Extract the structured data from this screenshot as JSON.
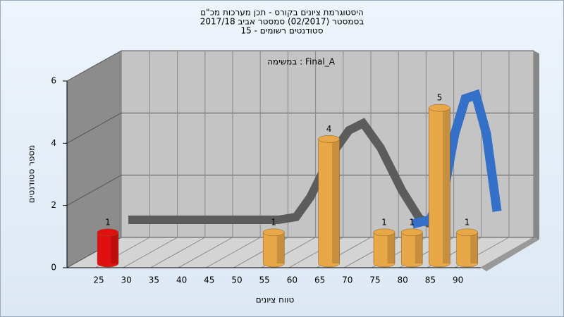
{
  "chart_data": {
    "type": "bar3d",
    "title_lines": [
      "היסטוגרמת ציונים בקורס - תכן מערכות מכ\"ם",
      "בסמסטר  (02/2017)  סמסטר אביב 2017/18",
      "סטודנטים רשומים - 15"
    ],
    "annotation": "במשימה : Final_A",
    "x_label": "טווח ציונים",
    "y_label": "מספר סטודנטים",
    "categories": [
      "25",
      "30",
      "35",
      "40",
      "45",
      "50",
      "55",
      "60",
      "65",
      "70",
      "75",
      "80",
      "85",
      "90"
    ],
    "values": [
      1,
      0,
      0,
      0,
      0,
      0,
      1,
      0,
      4,
      0,
      1,
      1,
      5,
      1
    ],
    "bar_colors": [
      "#e01010",
      "#e8a848",
      "#e8a848",
      "#e8a848",
      "#e8a848",
      "#e8a848",
      "#e8a848",
      "#e8a848",
      "#e8a848",
      "#e8a848",
      "#e8a848",
      "#e8a848",
      "#e8a848",
      "#e8a848"
    ],
    "ylim": [
      0,
      6
    ],
    "yticks": [
      0,
      2,
      4,
      6
    ],
    "grid": true
  }
}
